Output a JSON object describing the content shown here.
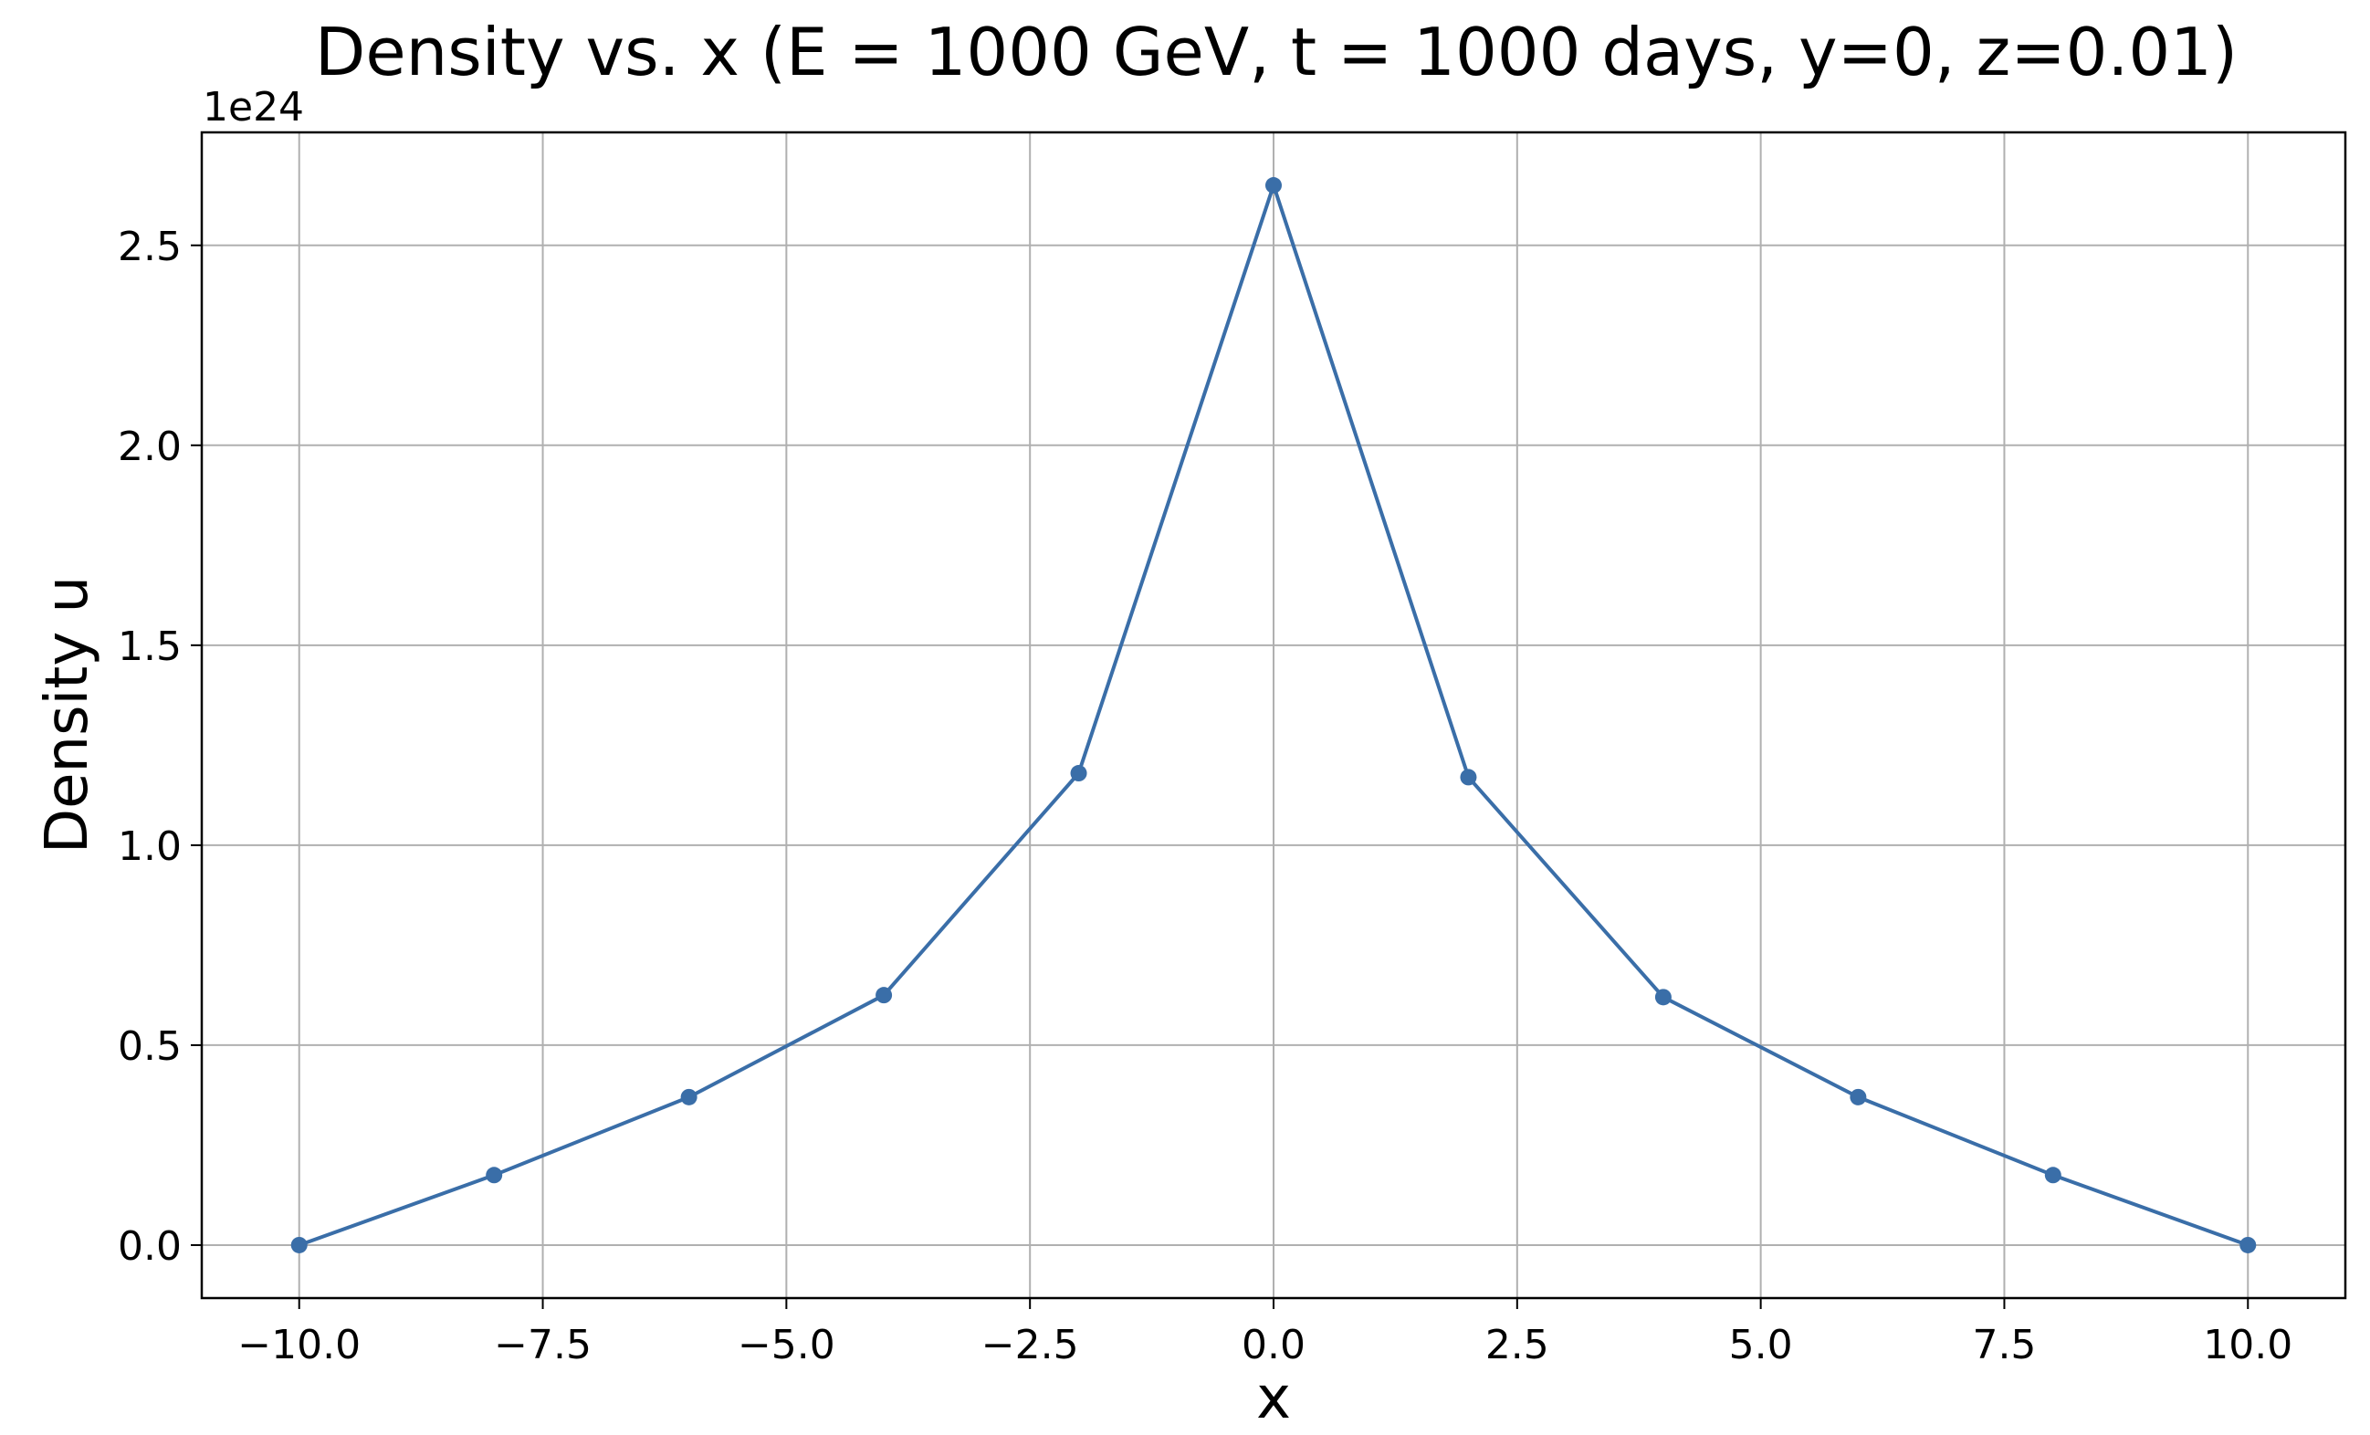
{
  "chart_data": {
    "type": "line",
    "title": "Density vs. x (E = 1000 GeV, t = 1000 days, y=0, z=0.01)",
    "xlabel": "x",
    "ylabel": "Density u",
    "y_offset_label": "1e24",
    "xlim": [
      -11.0,
      11.0
    ],
    "ylim": [
      -0.1325,
      2.7825
    ],
    "x_ticks": [
      -10.0,
      -7.5,
      -5.0,
      -2.5,
      0.0,
      2.5,
      5.0,
      7.5,
      10.0
    ],
    "x_tick_labels": [
      "−10.0",
      "−7.5",
      "−5.0",
      "−2.5",
      "0.0",
      "2.5",
      "5.0",
      "7.5",
      "10.0"
    ],
    "y_ticks": [
      0.0,
      0.5,
      1.0,
      1.5,
      2.0,
      2.5
    ],
    "y_tick_labels": [
      "0.0",
      "0.5",
      "1.0",
      "1.5",
      "2.0",
      "2.5"
    ],
    "grid": true,
    "series": [
      {
        "color": "#3a6ea8",
        "marker": "circle",
        "x": [
          -10,
          -8,
          -6,
          -4,
          -2,
          0,
          2,
          4,
          6,
          8,
          10
        ],
        "y": [
          0.0,
          0.175,
          0.37,
          0.625,
          1.18,
          2.65,
          1.17,
          0.62,
          0.37,
          0.175,
          0.0
        ]
      }
    ]
  }
}
